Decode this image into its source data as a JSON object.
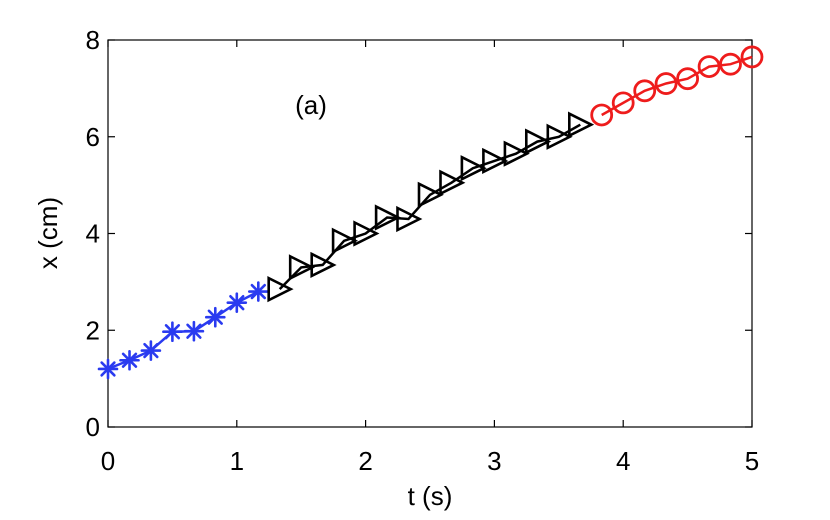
{
  "chart_data": {
    "type": "line",
    "xlabel": "t (s)",
    "ylabel": "x (cm)",
    "xlim": [
      0,
      5
    ],
    "ylim": [
      0,
      8
    ],
    "xticks": [
      "0",
      "1",
      "2",
      "3",
      "4",
      "5"
    ],
    "yticks": [
      "0",
      "2",
      "4",
      "6",
      "8"
    ],
    "annotation": "(a)",
    "grid": false,
    "series": [
      {
        "marker": "asterisk",
        "color": "#2a3bf0",
        "x": [
          0.0,
          0.167,
          0.333,
          0.5,
          0.667,
          0.833,
          1.0,
          1.167
        ],
        "y": [
          1.2,
          1.38,
          1.58,
          1.97,
          1.98,
          2.27,
          2.57,
          2.8
        ]
      },
      {
        "marker": "triangle-right",
        "color": "#000000",
        "x": [
          1.333,
          1.5,
          1.667,
          1.833,
          2.0,
          2.167,
          2.333,
          2.5,
          2.667,
          2.833,
          3.0,
          3.167,
          3.333,
          3.5,
          3.667
        ],
        "y": [
          2.85,
          3.3,
          3.35,
          3.85,
          4.0,
          4.33,
          4.3,
          4.8,
          5.05,
          5.35,
          5.5,
          5.65,
          5.9,
          6.0,
          6.25
        ]
      },
      {
        "marker": "circle",
        "color": "#ee1c1c",
        "x": [
          3.833,
          4.0,
          4.167,
          4.333,
          4.5,
          4.667,
          4.833,
          5.0
        ],
        "y": [
          6.45,
          6.7,
          6.95,
          7.1,
          7.2,
          7.45,
          7.5,
          7.65
        ]
      }
    ]
  }
}
